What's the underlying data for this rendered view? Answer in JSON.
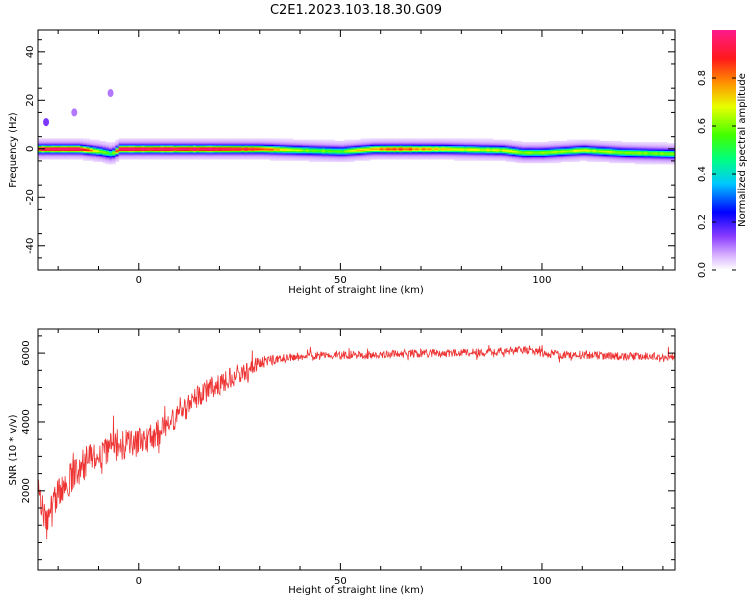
{
  "title": "C2E1.2023.103.18.30.G09",
  "chart_data": [
    {
      "type": "heatmap",
      "xlabel": "Height of straight line (km)",
      "ylabel": "Frequency (Hz)",
      "xlim": [
        -25,
        133
      ],
      "ylim": [
        -50,
        49
      ],
      "xticks": [
        0,
        50,
        100
      ],
      "yticks": [
        -40,
        -20,
        0,
        20,
        40
      ],
      "colorbar": {
        "label": "Normalized spectral amplitude",
        "range": [
          0,
          1
        ],
        "ticks": [
          "0.0",
          "0.2",
          "0.4",
          "0.6",
          "0.8"
        ],
        "colormap": "rainbow"
      },
      "ridge": {
        "x": [
          -25,
          -15,
          -10,
          -7,
          -5,
          0,
          20,
          30,
          40,
          50,
          58,
          65,
          75,
          90,
          95,
          100,
          110,
          120,
          133
        ],
        "freq_hz": [
          0,
          0,
          -1,
          -2,
          0,
          0,
          0,
          0,
          -0.5,
          -1,
          0,
          0,
          0,
          -0.5,
          -1.5,
          -1.5,
          -0.5,
          -1.5,
          -2
        ],
        "peak_amplitude": [
          0.9,
          0.9,
          0.5,
          0.4,
          0.9,
          0.9,
          0.9,
          0.75,
          0.5,
          0.45,
          0.7,
          0.75,
          0.6,
          0.55,
          0.5,
          0.5,
          0.55,
          0.5,
          0.5
        ]
      },
      "spots": [
        {
          "x": -23,
          "freq_hz": 11,
          "amplitude": 0.15
        },
        {
          "x": -16,
          "freq_hz": 15,
          "amplitude": 0.1
        },
        {
          "x": -7,
          "freq_hz": 23,
          "amplitude": 0.1
        }
      ]
    },
    {
      "type": "line",
      "xlabel": "Height of straight line (km)",
      "ylabel": "SNR (10 * v/v)",
      "xlim": [
        -25,
        133
      ],
      "ylim": [
        -300,
        6700
      ],
      "xticks": [
        0,
        50,
        100
      ],
      "yticks": [
        2000,
        4000,
        6000
      ],
      "color": "#ee3333",
      "trend": {
        "x": [
          -25,
          -23,
          -20,
          -15,
          -10,
          -5,
          0,
          5,
          10,
          15,
          20,
          25,
          30,
          35,
          40,
          50,
          60,
          70,
          80,
          90,
          95,
          100,
          105,
          110,
          120,
          133
        ],
        "y": [
          2200,
          1000,
          1900,
          2600,
          3100,
          3300,
          3400,
          3700,
          4200,
          4800,
          5100,
          5400,
          5700,
          5850,
          5900,
          5950,
          5950,
          6000,
          6000,
          6050,
          6100,
          6000,
          5950,
          5950,
          5900,
          5900
        ]
      },
      "noise_amplitude": {
        "x": [
          -25,
          -10,
          10,
          25,
          35,
          133
        ],
        "y": [
          500,
          500,
          350,
          300,
          120,
          120
        ]
      }
    }
  ]
}
